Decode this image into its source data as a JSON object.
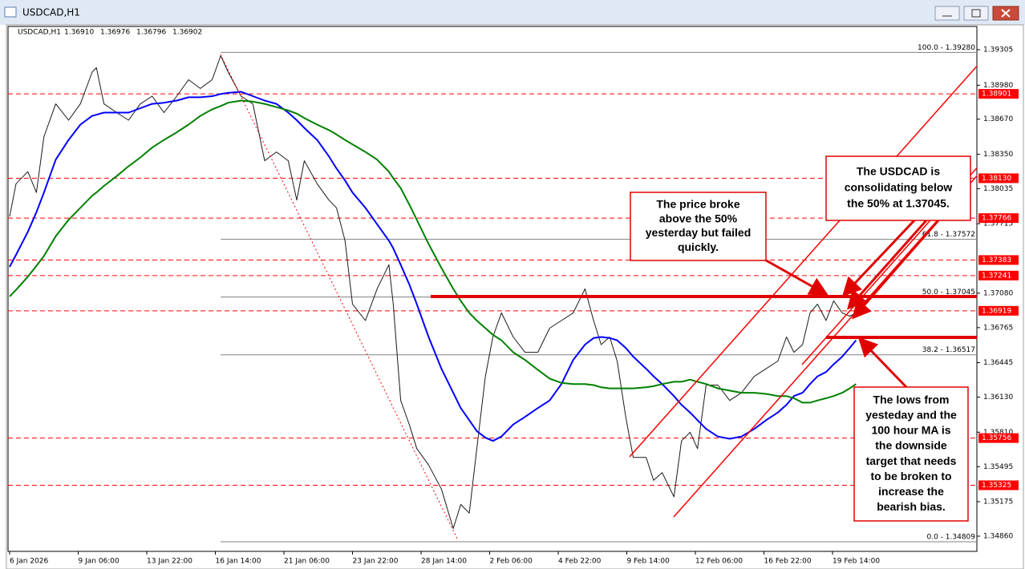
{
  "chart_data": {
    "type": "line",
    "window_title": "USDCAD,H1",
    "symbol": "USDCAD,H1",
    "ohlc": [
      "1.36910",
      "1.36976",
      "1.36796",
      "1.36902"
    ],
    "x": [
      0,
      6,
      17,
      25,
      32,
      43,
      55,
      66,
      77,
      81,
      88,
      100,
      111,
      122,
      133,
      144,
      156,
      167,
      178,
      189,
      197,
      204,
      216,
      227,
      238,
      249,
      260,
      268,
      275,
      287,
      298,
      305,
      313,
      320,
      332,
      343,
      354,
      358,
      365,
      373,
      380,
      391,
      403,
      414,
      421,
      429,
      436,
      444,
      451,
      459,
      470,
      481,
      493,
      504,
      515,
      526,
      537,
      545,
      552,
      560,
      567,
      575,
      582,
      594,
      601,
      609,
      620,
      627,
      635,
      642,
      650,
      661,
      672,
      683,
      695,
      706,
      717,
      725,
      732,
      740,
      747,
      754,
      762,
      769,
      777,
      784,
      790
    ],
    "series": [
      {
        "color": "#1a1a1a",
        "values": [
          1.3778,
          1.3808,
          1.3819,
          1.38,
          1.3851,
          1.3881,
          1.3866,
          1.3881,
          1.391,
          1.3914,
          1.3881,
          1.3873,
          1.3866,
          1.3881,
          1.3888,
          1.3873,
          1.3888,
          1.3903,
          1.3895,
          1.3903,
          1.3925,
          1.391,
          1.3888,
          1.3881,
          1.3829,
          1.3837,
          1.3829,
          1.3793,
          1.3829,
          1.3808,
          1.3793,
          1.3786,
          1.3756,
          1.3698,
          1.3683,
          1.3712,
          1.3734,
          1.3698,
          1.361,
          1.3588,
          1.3566,
          1.3551,
          1.3529,
          1.3493,
          1.3515,
          1.3507,
          1.3566,
          1.3632,
          1.3668,
          1.369,
          1.3668,
          1.3654,
          1.3654,
          1.3676,
          1.3683,
          1.369,
          1.3712,
          1.3683,
          1.3661,
          1.3668,
          1.3646,
          1.3595,
          1.3558,
          1.3558,
          1.3537,
          1.3544,
          1.3522,
          1.3573,
          1.3581,
          1.3566,
          1.3624,
          1.3624,
          1.361,
          1.3617,
          1.3632,
          1.3639,
          1.3646,
          1.3668,
          1.3654,
          1.3661,
          1.369,
          1.3698,
          1.3683,
          1.3701,
          1.369,
          1.3687,
          1.369
        ]
      },
      {
        "color": "#0000ff",
        "values": [
          1.3732,
          1.3743,
          1.3764,
          1.3782,
          1.38,
          1.383,
          1.3848,
          1.3862,
          1.387,
          1.3871,
          1.3873,
          1.3873,
          1.3873,
          1.3877,
          1.3881,
          1.3882,
          1.3884,
          1.3887,
          1.3887,
          1.3888,
          1.389,
          1.3891,
          1.3892,
          1.3888,
          1.3884,
          1.3881,
          1.3873,
          1.3866,
          1.3859,
          1.3848,
          1.3833,
          1.3822,
          1.3811,
          1.38,
          1.3786,
          1.3771,
          1.3756,
          1.3749,
          1.3734,
          1.3716,
          1.3698,
          1.3668,
          1.3639,
          1.3617,
          1.3603,
          1.3592,
          1.3582,
          1.3576,
          1.3573,
          1.3577,
          1.3588,
          1.3595,
          1.3603,
          1.361,
          1.3625,
          1.3647,
          1.3661,
          1.3667,
          1.3668,
          1.3667,
          1.3665,
          1.3658,
          1.365,
          1.3639,
          1.3632,
          1.3625,
          1.3614,
          1.3606,
          1.3599,
          1.3592,
          1.3584,
          1.3577,
          1.3575,
          1.3577,
          1.3584,
          1.3592,
          1.3599,
          1.3606,
          1.3614,
          1.3617,
          1.3625,
          1.3632,
          1.3636,
          1.3643,
          1.365,
          1.3658,
          1.3665
        ]
      },
      {
        "color": "#008000",
        "values": [
          1.3705,
          1.3711,
          1.3723,
          1.3733,
          1.3742,
          1.376,
          1.3775,
          1.3786,
          1.3797,
          1.38,
          1.3806,
          1.3815,
          1.3824,
          1.3832,
          1.3841,
          1.3848,
          1.3855,
          1.3862,
          1.387,
          1.3876,
          1.3879,
          1.3882,
          1.3884,
          1.3883,
          1.3881,
          1.3878,
          1.3875,
          1.3872,
          1.3868,
          1.3862,
          1.3857,
          1.3853,
          1.3848,
          1.3844,
          1.3837,
          1.383,
          1.3819,
          1.3813,
          1.3804,
          1.3789,
          1.3775,
          1.3753,
          1.3731,
          1.3712,
          1.3701,
          1.369,
          1.3683,
          1.3676,
          1.367,
          1.3665,
          1.3654,
          1.3647,
          1.3638,
          1.363,
          1.3626,
          1.3625,
          1.3625,
          1.3624,
          1.3622,
          1.3621,
          1.3621,
          1.3621,
          1.3621,
          1.3622,
          1.3623,
          1.3625,
          1.3627,
          1.3627,
          1.3629,
          1.3627,
          1.3625,
          1.3621,
          1.3619,
          1.3617,
          1.3617,
          1.3616,
          1.3614,
          1.3614,
          1.3612,
          1.3608,
          1.3608,
          1.361,
          1.3612,
          1.3614,
          1.3617,
          1.3621,
          1.3625
        ]
      }
    ],
    "xlim": [
      -1.5,
      902.7
    ],
    "xticks": [
      {
        "value": 0,
        "label": "6 Jan 2026"
      },
      {
        "value": 64,
        "label": "9 Jan 06:00"
      },
      {
        "value": 128,
        "label": "13 Jan 22:00"
      },
      {
        "value": 192,
        "label": "16 Jan 14:00"
      },
      {
        "value": 256,
        "label": "21 Jan 06:00"
      },
      {
        "value": 320,
        "label": "23 Jan 22:00"
      },
      {
        "value": 384,
        "label": "28 Jan 14:00"
      },
      {
        "value": 448,
        "label": "2 Feb 06:00"
      },
      {
        "value": 512,
        "label": "4 Feb 22:00"
      },
      {
        "value": 576,
        "label": "9 Feb 14:00"
      },
      {
        "value": 640,
        "label": "12 Feb 06:00"
      },
      {
        "value": 704,
        "label": "16 Feb 22:00"
      },
      {
        "value": 768,
        "label": "19 Feb 14:00"
      }
    ],
    "ylim": [
      1.34721,
      1.39517
    ],
    "yticks": [
      1.39305,
      {
        "value": 1.3898,
        "label": "1.38980"
      },
      {
        "value": 1.3867,
        "label": "1.38670"
      },
      {
        "value": 1.3835,
        "label": "1.38350"
      },
      1.38035,
      1.37715,
      {
        "value": 1.3708,
        "label": "1.37080"
      },
      1.36765,
      1.36445,
      {
        "value": 1.3613,
        "label": "1.36130"
      },
      {
        "value": 1.3581,
        "label": "1.35810"
      },
      1.35495,
      1.35175,
      {
        "value": 1.3486,
        "label": "1.34860"
      }
    ],
    "levels": [
      1.38901,
      {
        "value": 1.3813,
        "label": "1.38130"
      },
      1.37766,
      1.37383,
      1.37241,
      1.36919,
      1.35756,
      1.35325
    ],
    "level_color": "#ff0000",
    "fib_x_start": 197,
    "fib_levels": [
      {
        "value": 1.3928,
        "label": "100.0 - 1.39280"
      },
      {
        "value": 1.37572,
        "label": "61.8 - 1.37572"
      },
      {
        "value": 1.37045,
        "label": "50.0 - 1.37045"
      },
      {
        "value": 1.36517,
        "label": "38.2 - 1.36517"
      },
      {
        "value": 1.34809,
        "label": "0.0 - 1.34809"
      }
    ],
    "annotations": [
      {
        "lines": [
          "The price broke",
          "above the 50%",
          "yesterday but failed",
          "quickly."
        ]
      },
      {
        "lines": [
          "The USDCAD is",
          "consolidating below",
          "the 50% at 1.37045."
        ]
      },
      {
        "lines": [
          "The lows from",
          "yesteday and the",
          "100 hour MA is",
          "the downside",
          "target that needs",
          "to be broken to",
          "increase the",
          "bearish bias."
        ]
      }
    ]
  }
}
